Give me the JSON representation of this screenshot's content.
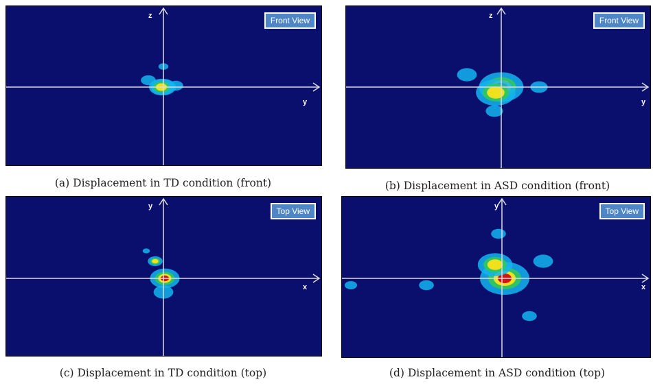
{
  "figures": [
    {
      "id": "a",
      "view_badge": "Front View",
      "vertical_axis": "z",
      "horizontal_axis": "y",
      "caption": "(a) Displacement in TD condition (front)",
      "blobs": [
        {
          "dx": 0,
          "dy": 0,
          "r": 1.0,
          "level": "red"
        },
        {
          "dx": -3,
          "dy": 0,
          "r": 1.0,
          "level": "yellow"
        },
        {
          "dx": -22,
          "dy": -10,
          "r": 0.6,
          "level": "cyan"
        },
        {
          "dx": 18,
          "dy": -2,
          "r": 0.6,
          "level": "cyan"
        },
        {
          "dx": 0,
          "dy": -30,
          "r": 0.4,
          "level": "cyan"
        }
      ]
    },
    {
      "id": "b",
      "view_badge": "Front View",
      "vertical_axis": "z",
      "horizontal_axis": "y",
      "caption": "(b) Displacement in ASD condition (front)",
      "blobs": [
        {
          "dx": 0,
          "dy": 0,
          "r": 1.8,
          "level": "red"
        },
        {
          "dx": -8,
          "dy": 8,
          "r": 1.6,
          "level": "yellow"
        },
        {
          "dx": -50,
          "dy": -18,
          "r": 0.8,
          "level": "cyan"
        },
        {
          "dx": 55,
          "dy": 0,
          "r": 0.7,
          "level": "cyan"
        },
        {
          "dx": -10,
          "dy": 35,
          "r": 0.7,
          "level": "cyan"
        }
      ]
    },
    {
      "id": "c",
      "view_badge": "Top View",
      "vertical_axis": "y",
      "horizontal_axis": "x",
      "caption": "(c) Displacement in TD condition (top)",
      "blobs": [
        {
          "dx": 2,
          "dy": 0,
          "r": 1.2,
          "level": "red"
        },
        {
          "dx": -12,
          "dy": -25,
          "r": 0.6,
          "level": "yellow"
        },
        {
          "dx": 0,
          "dy": 20,
          "r": 0.8,
          "level": "cyan"
        },
        {
          "dx": -25,
          "dy": -40,
          "r": 0.3,
          "level": "cyan"
        }
      ]
    },
    {
      "id": "d",
      "view_badge": "Top View",
      "vertical_axis": "y",
      "horizontal_axis": "x",
      "caption": "(d) Displacement in ASD condition (top)",
      "blobs": [
        {
          "dx": 4,
          "dy": 0,
          "r": 2.0,
          "level": "red"
        },
        {
          "dx": -10,
          "dy": -20,
          "r": 1.4,
          "level": "yellow"
        },
        {
          "dx": 60,
          "dy": -25,
          "r": 0.8,
          "level": "cyan"
        },
        {
          "dx": -110,
          "dy": 10,
          "r": 0.6,
          "level": "cyan"
        },
        {
          "dx": 40,
          "dy": 55,
          "r": 0.6,
          "level": "cyan"
        },
        {
          "dx": -5,
          "dy": -65,
          "r": 0.6,
          "level": "cyan"
        },
        {
          "dx": -220,
          "dy": 10,
          "r": 0.5,
          "level": "cyan"
        }
      ]
    }
  ],
  "colors": {
    "background": "#0a0f6e",
    "axis": "#dcdcdc",
    "badge": "#4f86c6",
    "red": "#d21414",
    "yellow": "#f0e11e",
    "green": "#32c85a",
    "cyan": "#14b4f0"
  }
}
